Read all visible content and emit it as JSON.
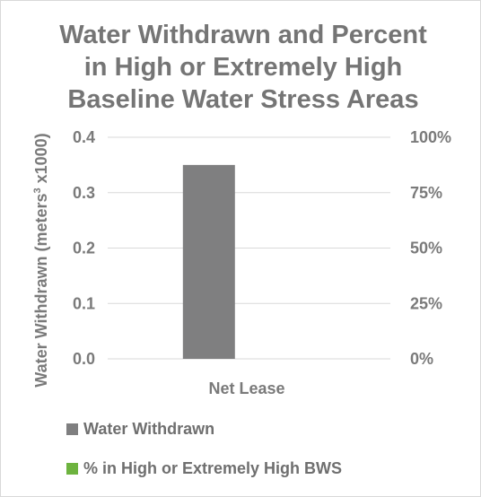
{
  "chart_data": {
    "type": "bar",
    "title_lines": [
      "Water Withdrawn and Percent",
      "in High or Extremely High",
      "Baseline Water Stress Areas"
    ],
    "categories": [
      "Net Lease"
    ],
    "series": [
      {
        "name": "Water Withdrawn",
        "axis": "left",
        "color": "#7f7f80",
        "values": [
          0.35
        ]
      },
      {
        "name": "% in High or Extremely High BWS",
        "axis": "right",
        "color": "#6db33f",
        "values": [
          0
        ]
      }
    ],
    "ylabel_prefix": "Water Withdrawn (meters",
    "ylabel_sup": "3",
    "ylabel_suffix": " x1000)",
    "ylim": [
      0,
      0.4
    ],
    "yticks": [
      "0.0",
      "0.1",
      "0.2",
      "0.3",
      "0.4"
    ],
    "y2lim": [
      0,
      100
    ],
    "y2ticks": [
      "0%",
      "25%",
      "50%",
      "75%",
      "100%"
    ],
    "grid": true,
    "legend_position": "bottom"
  }
}
